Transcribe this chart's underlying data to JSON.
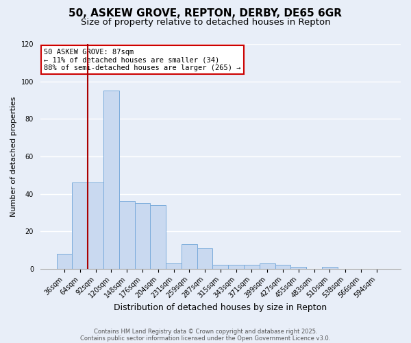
{
  "title": "50, ASKEW GROVE, REPTON, DERBY, DE65 6GR",
  "subtitle": "Size of property relative to detached houses in Repton",
  "xlabel": "Distribution of detached houses by size in Repton",
  "ylabel": "Number of detached properties",
  "bar_labels": [
    "36sqm",
    "64sqm",
    "92sqm",
    "120sqm",
    "148sqm",
    "176sqm",
    "204sqm",
    "231sqm",
    "259sqm",
    "287sqm",
    "315sqm",
    "343sqm",
    "371sqm",
    "399sqm",
    "427sqm",
    "455sqm",
    "483sqm",
    "510sqm",
    "538sqm",
    "566sqm",
    "594sqm"
  ],
  "bar_values": [
    8,
    46,
    46,
    95,
    36,
    35,
    34,
    3,
    13,
    11,
    2,
    2,
    2,
    3,
    2,
    1,
    0,
    1,
    0,
    0,
    0
  ],
  "bar_color": "#c9d9f0",
  "bar_edge_color": "#7aabdb",
  "background_color": "#e8eef8",
  "grid_color": "#ffffff",
  "vline_color": "#aa0000",
  "vline_x": 1.5,
  "annotation_title": "50 ASKEW GROVE: 87sqm",
  "annotation_line1": "← 11% of detached houses are smaller (34)",
  "annotation_line2": "88% of semi-detached houses are larger (265) →",
  "annotation_box_color": "#ffffff",
  "annotation_box_edge": "#cc0000",
  "footer_line1": "Contains HM Land Registry data © Crown copyright and database right 2025.",
  "footer_line2": "Contains public sector information licensed under the Open Government Licence v3.0.",
  "ylim": [
    0,
    120
  ],
  "yticks": [
    0,
    20,
    40,
    60,
    80,
    100,
    120
  ],
  "title_fontsize": 11,
  "subtitle_fontsize": 9.5,
  "ylabel_fontsize": 8,
  "xlabel_fontsize": 9,
  "tick_fontsize": 7,
  "footer_fontsize": 6
}
